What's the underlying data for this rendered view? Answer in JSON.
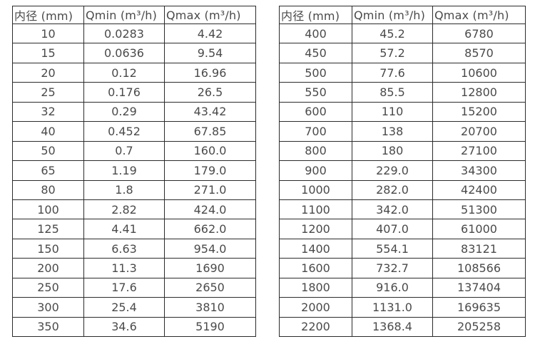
{
  "page": {
    "background_color": "#ffffff",
    "text_color": "#4a4a4a",
    "border_color": "#2b2b2b"
  },
  "tables": [
    {
      "name": "flow-table-small-diameters",
      "headers": [
        "内径 (mm)",
        "Qmin (m³/h)",
        "Qmax (m³/h)"
      ],
      "rows": [
        [
          "10",
          "0.0283",
          "4.42"
        ],
        [
          "15",
          "0.0636",
          "9.54"
        ],
        [
          "20",
          "0.12",
          "16.96"
        ],
        [
          "25",
          "0.176",
          "26.5"
        ],
        [
          "32",
          "0.29",
          "43.42"
        ],
        [
          "40",
          "0.452",
          "67.85"
        ],
        [
          "50",
          "0.7",
          "160.0"
        ],
        [
          "65",
          "1.19",
          "179.0"
        ],
        [
          "80",
          "1.8",
          "271.0"
        ],
        [
          "100",
          "2.82",
          "424.0"
        ],
        [
          "125",
          "4.41",
          "662.0"
        ],
        [
          "150",
          "6.63",
          "954.0"
        ],
        [
          "200",
          "11.3",
          "1690"
        ],
        [
          "250",
          "17.6",
          "2650"
        ],
        [
          "300",
          "25.4",
          "3810"
        ],
        [
          "350",
          "34.6",
          "5190"
        ]
      ]
    },
    {
      "name": "flow-table-large-diameters",
      "headers": [
        "内径 (mm)",
        "Qmin (m³/h)",
        "Qmax (m³/h)"
      ],
      "rows": [
        [
          "400",
          "45.2",
          "6780"
        ],
        [
          "450",
          "57.2",
          "8570"
        ],
        [
          "500",
          "77.6",
          "10600"
        ],
        [
          "550",
          "85.5",
          "12800"
        ],
        [
          "600",
          "110",
          "15200"
        ],
        [
          "700",
          "138",
          "20700"
        ],
        [
          "800",
          "180",
          "27100"
        ],
        [
          "900",
          "229.0",
          "34300"
        ],
        [
          "1000",
          "282.0",
          "42400"
        ],
        [
          "1100",
          "342.0",
          "51300"
        ],
        [
          "1200",
          "407.0",
          "61000"
        ],
        [
          "1400",
          "554.1",
          "83121"
        ],
        [
          "1600",
          "732.7",
          "108566"
        ],
        [
          "1800",
          "916.0",
          "137404"
        ],
        [
          "2000",
          "1131.0",
          "169635"
        ],
        [
          "2200",
          "1368.4",
          "205258"
        ]
      ]
    }
  ]
}
